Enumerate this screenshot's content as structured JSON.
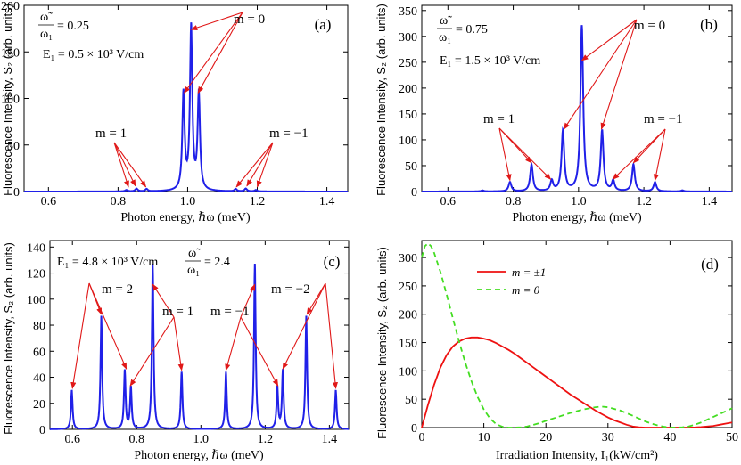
{
  "chart_data": [
    {
      "panel": "(a)",
      "type": "line",
      "xlabel": "Photon energy, ℏω (meV)",
      "ylabel": "Fluorescence Intensity, S₂ (arb. units)",
      "xlim": [
        0.53,
        1.46
      ],
      "ylim": [
        0,
        200
      ],
      "xticks": [
        0.6,
        0.8,
        1.0,
        1.2,
        1.4
      ],
      "yticks": [
        0,
        50,
        100,
        150,
        200
      ],
      "xtick_labels": [
        "0.6",
        "0.8",
        "1.0",
        "1.2",
        "1.4"
      ],
      "ytick_labels": [
        "0",
        "50",
        "100",
        "150",
        "200"
      ],
      "ratio_num": "ω̃",
      "ratio_den": "ω₁",
      "ratio_value": "= 0.25",
      "field_text": "E₁ = 0.5 × 10³ V/cm",
      "peaks": [
        {
          "x": 0.824,
          "y": 1.5
        },
        {
          "x": 0.853,
          "y": 3
        },
        {
          "x": 0.882,
          "y": 2.5
        },
        {
          "x": 0.988,
          "y": 104
        },
        {
          "x": 1.01,
          "y": 175
        },
        {
          "x": 1.032,
          "y": 104
        },
        {
          "x": 1.138,
          "y": 2.5
        },
        {
          "x": 1.167,
          "y": 3
        },
        {
          "x": 1.196,
          "y": 1.5
        }
      ],
      "width": 0.004,
      "color": "#2020e8",
      "annotations": [
        {
          "text": "m = 0",
          "targets": [
            [
              0.99,
              104
            ],
            [
              1.01,
              172
            ],
            [
              1.03,
              104
            ]
          ]
        },
        {
          "text": "m = 1",
          "targets": [
            [
              0.83,
              3
            ],
            [
              0.85,
              4
            ],
            [
              0.88,
              3
            ]
          ]
        },
        {
          "text": "m = −1",
          "targets": [
            [
              1.14,
              3
            ],
            [
              1.17,
              4
            ],
            [
              1.2,
              3
            ]
          ]
        }
      ]
    },
    {
      "panel": "(b)",
      "type": "line",
      "xlabel": "Photon energy, ℏω (meV)",
      "ylabel": "Fluorescence Intensity, S₂ (arb. units)",
      "xlim": [
        0.52,
        1.47
      ],
      "ylim": [
        0,
        360
      ],
      "xticks": [
        0.6,
        0.8,
        1.0,
        1.2,
        1.4
      ],
      "yticks": [
        0,
        50,
        100,
        150,
        200,
        250,
        300,
        350
      ],
      "xtick_labels": [
        "0.6",
        "0.8",
        "1.0",
        "1.2",
        "1.4"
      ],
      "ytick_labels": [
        "0",
        "50",
        "100",
        "150",
        "200",
        "250",
        "300",
        "350"
      ],
      "ratio_num": "ω̃",
      "ratio_den": "ω₁",
      "ratio_value": "= 0.75",
      "field_text": "E₁ = 1.5 × 10³ V/cm",
      "peaks": [
        {
          "x": 0.706,
          "y": 2
        },
        {
          "x": 0.79,
          "y": 18
        },
        {
          "x": 0.856,
          "y": 52
        },
        {
          "x": 0.918,
          "y": 20
        },
        {
          "x": 0.952,
          "y": 117
        },
        {
          "x": 1.01,
          "y": 320
        },
        {
          "x": 1.072,
          "y": 117
        },
        {
          "x": 1.106,
          "y": 20
        },
        {
          "x": 1.168,
          "y": 52
        },
        {
          "x": 1.234,
          "y": 18
        },
        {
          "x": 1.318,
          "y": 2
        }
      ],
      "width": 0.005,
      "color": "#2020e8",
      "annotations": [
        {
          "text": "m = 0",
          "targets": [
            [
              0.955,
              117
            ],
            [
              1.01,
              250
            ],
            [
              1.07,
              117
            ]
          ]
        },
        {
          "text": "m = 1",
          "targets": [
            [
              0.79,
              18
            ],
            [
              0.856,
              52
            ],
            [
              0.915,
              20
            ]
          ]
        },
        {
          "text": "m = −1",
          "targets": [
            [
              1.105,
              20
            ],
            [
              1.168,
              52
            ],
            [
              1.234,
              18
            ]
          ]
        }
      ]
    },
    {
      "panel": "(c)",
      "type": "line",
      "xlabel": "Photon energy, ℏω (meV)",
      "ylabel": "Fluorescence Intensity, S₂ (arb. units)",
      "xlim": [
        0.53,
        1.46
      ],
      "ylim": [
        0,
        145
      ],
      "xticks": [
        0.6,
        0.8,
        1.0,
        1.2,
        1.4
      ],
      "yticks": [
        0,
        20,
        40,
        60,
        80,
        100,
        120,
        140
      ],
      "xtick_labels": [
        "0.6",
        "0.8",
        "1.0",
        "1.2",
        "1.4"
      ],
      "ytick_labels": [
        "0",
        "20",
        "40",
        "60",
        "80",
        "100",
        "120",
        "140"
      ],
      "ratio_num": "ω̃",
      "ratio_den": "ω₁",
      "ratio_value": "= 2.4",
      "field_text": "E₁ = 4.8 × 10³ V/cm",
      "peaks": [
        {
          "x": 0.598,
          "y": 30
        },
        {
          "x": 0.69,
          "y": 87
        },
        {
          "x": 0.763,
          "y": 45
        },
        {
          "x": 0.782,
          "y": 32
        },
        {
          "x": 0.85,
          "y": 127
        },
        {
          "x": 0.94,
          "y": 44
        },
        {
          "x": 1.078,
          "y": 44
        },
        {
          "x": 1.168,
          "y": 127
        },
        {
          "x": 1.238,
          "y": 32
        },
        {
          "x": 1.255,
          "y": 45
        },
        {
          "x": 1.328,
          "y": 87
        },
        {
          "x": 1.42,
          "y": 30
        }
      ],
      "width": 0.003,
      "color": "#2020e8",
      "annotations": [
        {
          "text": "m = 2",
          "targets": [
            [
              0.6,
              30
            ],
            [
              0.69,
              87
            ],
            [
              0.768,
              45
            ]
          ]
        },
        {
          "text": "m = 1",
          "targets": [
            [
              0.78,
              32
            ],
            [
              0.85,
              110
            ],
            [
              0.94,
              44
            ]
          ]
        },
        {
          "text": "m = −1",
          "targets": [
            [
              1.078,
              44
            ],
            [
              1.168,
              110
            ],
            [
              1.24,
              32
            ]
          ]
        },
        {
          "text": "m = −2",
          "targets": [
            [
              1.255,
              45
            ],
            [
              1.33,
              87
            ],
            [
              1.42,
              30
            ]
          ]
        }
      ]
    },
    {
      "panel": "(d)",
      "type": "line",
      "xlabel": "Irradiation Intensity, I₁(kW/cm²)",
      "ylabel": "Fluorescence Intensity, S₂ (arb. units)",
      "xlim": [
        0,
        50
      ],
      "ylim": [
        0,
        330
      ],
      "xticks": [
        0,
        10,
        20,
        30,
        40,
        50
      ],
      "yticks": [
        0,
        50,
        100,
        150,
        200,
        250,
        300
      ],
      "xtick_labels": [
        "0",
        "10",
        "20",
        "30",
        "40",
        "50"
      ],
      "ytick_labels": [
        "0",
        "50",
        "100",
        "150",
        "200",
        "250",
        "300"
      ],
      "legend": "top-right",
      "series": [
        {
          "name": "m = ±1",
          "color": "#ee1111",
          "dash": "",
          "x": [
            0,
            1,
            2,
            3,
            4,
            5,
            6,
            7,
            8,
            9,
            10,
            11,
            12,
            13,
            14,
            15,
            16,
            17,
            18,
            19,
            20,
            21,
            22,
            23,
            24,
            25,
            26,
            27,
            28,
            29,
            30,
            31,
            32,
            33,
            34,
            35,
            36,
            37,
            38,
            39,
            40,
            41,
            42,
            43,
            44,
            45,
            46,
            47,
            48,
            49,
            50
          ],
          "y": [
            0,
            40,
            76,
            106,
            128,
            143,
            152,
            157,
            159,
            159,
            157,
            154,
            149,
            143,
            137,
            130,
            122,
            114,
            106,
            98,
            90,
            82,
            74,
            66,
            58,
            51,
            44,
            37,
            30,
            24,
            18,
            13,
            9,
            5,
            2,
            0.6,
            0,
            0,
            0,
            0,
            0,
            0,
            0,
            0,
            0.3,
            1,
            2,
            3,
            5,
            7,
            9
          ]
        },
        {
          "name": "m = 0",
          "color": "#44dd22",
          "dash": "6,4",
          "x": [
            0,
            0.5,
            1,
            1.5,
            2,
            3,
            4,
            5,
            6,
            7,
            8,
            9,
            10,
            11,
            12,
            13,
            14,
            15,
            16,
            17,
            18,
            19,
            20,
            22,
            24,
            26,
            28,
            29,
            30,
            32,
            34,
            36,
            37,
            38,
            39,
            40,
            41,
            42,
            43,
            44,
            45,
            46,
            47,
            48,
            49,
            50
          ],
          "y": [
            300,
            320,
            325,
            320,
            308,
            275,
            235,
            193,
            152,
            115,
            82,
            54,
            32,
            16,
            6,
            1.5,
            0,
            0,
            0.5,
            2,
            5,
            8,
            12,
            19,
            26,
            32,
            36,
            37,
            36,
            30,
            21,
            11,
            7,
            4,
            1.5,
            0.3,
            0,
            0.5,
            2,
            5,
            9,
            14,
            19,
            24,
            29,
            34
          ]
        }
      ]
    }
  ]
}
